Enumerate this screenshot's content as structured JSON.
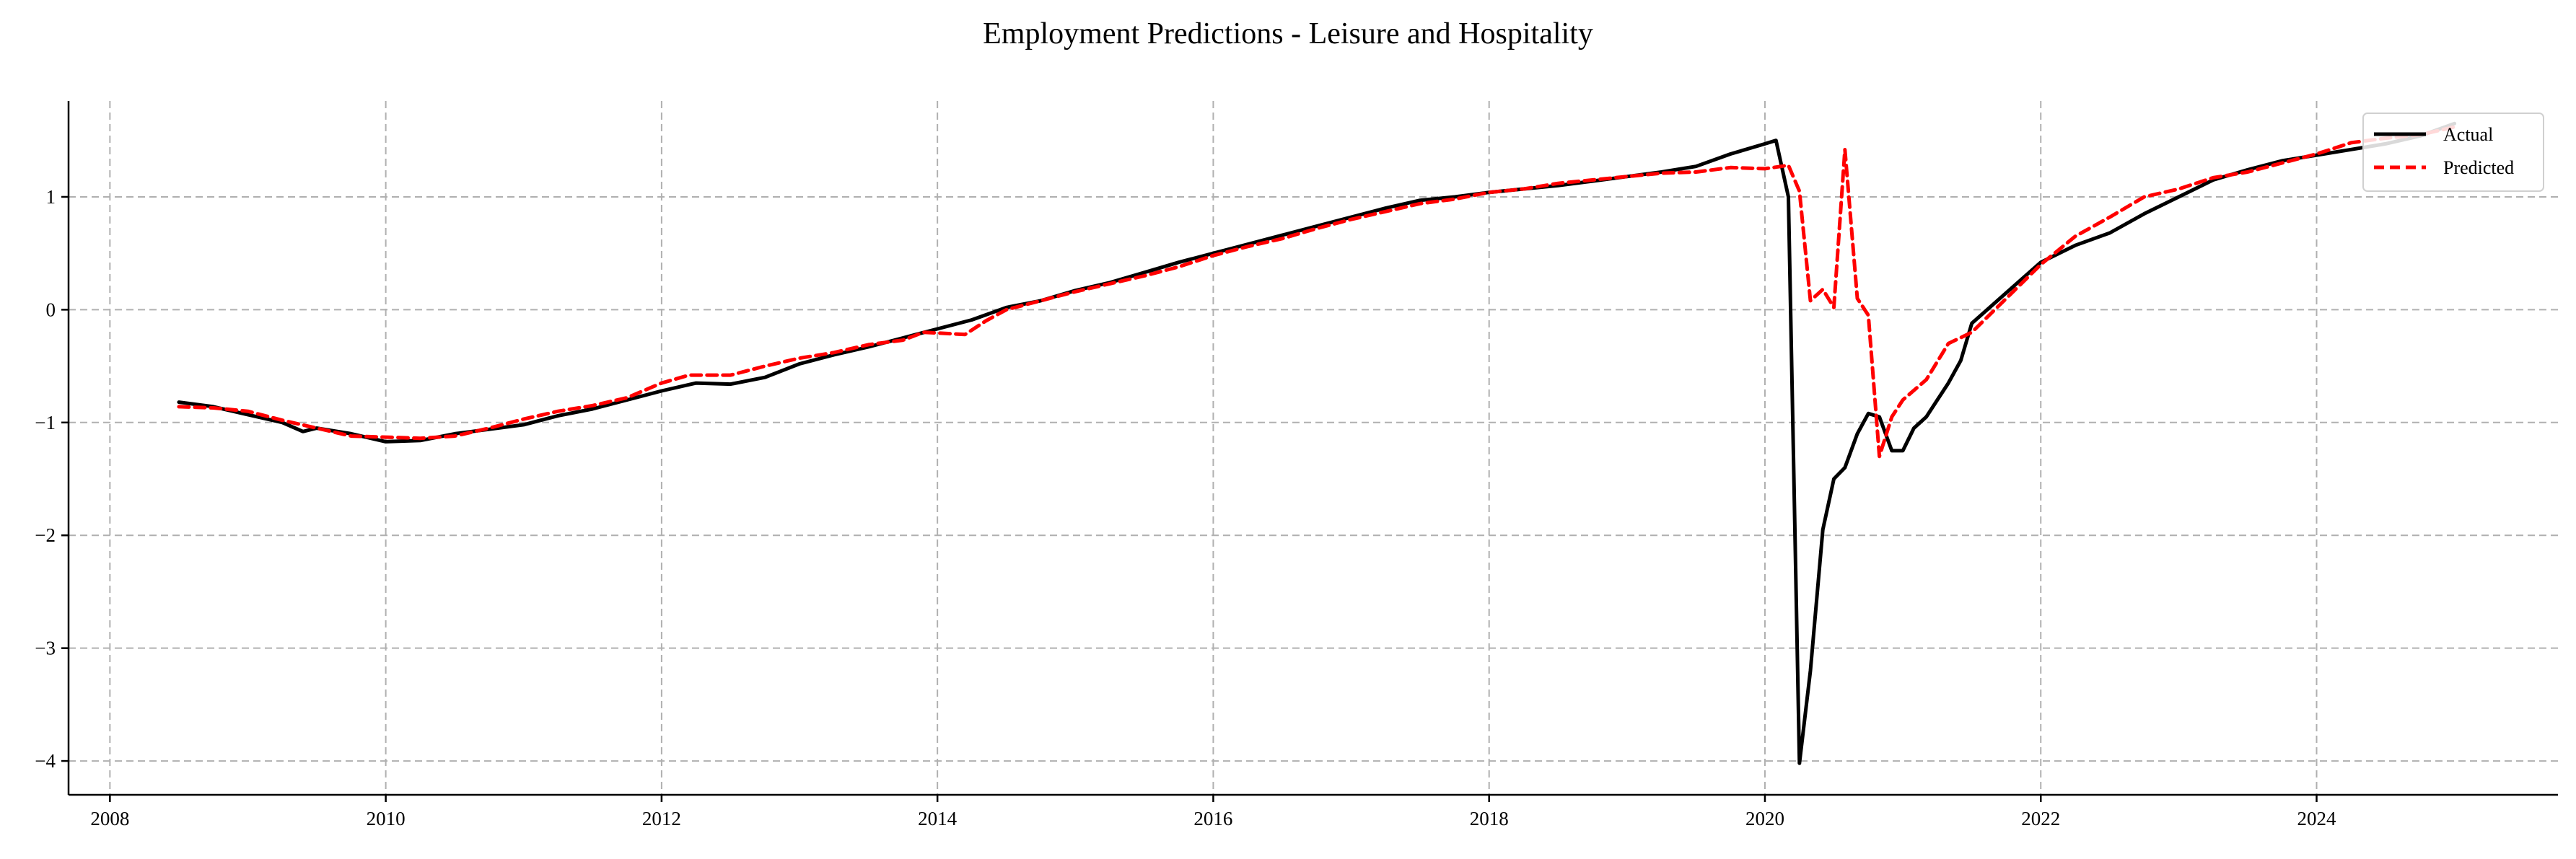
{
  "chart_data": {
    "type": "line",
    "title": "Employment Predictions - Leisure and Hospitality",
    "xlabel": "",
    "ylabel": "",
    "xlim": [
      2007.7,
      2025.75
    ],
    "ylim": [
      -4.3,
      1.85
    ],
    "x_ticks": [
      2008,
      2010,
      2012,
      2014,
      2016,
      2018,
      2020,
      2022,
      2024
    ],
    "y_ticks": [
      1,
      0,
      -1,
      -2,
      -3,
      -4
    ],
    "x_tick_labels": [
      "2008",
      "2010",
      "2012",
      "2014",
      "2016",
      "2018",
      "2020",
      "2022",
      "2024"
    ],
    "y_tick_labels": [
      "1",
      "0",
      "−1",
      "−2",
      "−3",
      "−4"
    ],
    "grid": true,
    "legend_position": "top-right",
    "series": [
      {
        "name": "Actual",
        "color": "#000000",
        "style": "solid",
        "points": [
          [
            2008.5,
            -0.82
          ],
          [
            2008.75,
            -0.86
          ],
          [
            2009.0,
            -0.93
          ],
          [
            2009.25,
            -1.0
          ],
          [
            2009.4,
            -1.08
          ],
          [
            2009.5,
            -1.05
          ],
          [
            2009.75,
            -1.1
          ],
          [
            2010.0,
            -1.17
          ],
          [
            2010.25,
            -1.16
          ],
          [
            2010.5,
            -1.1
          ],
          [
            2010.75,
            -1.06
          ],
          [
            2011.0,
            -1.02
          ],
          [
            2011.25,
            -0.94
          ],
          [
            2011.5,
            -0.88
          ],
          [
            2011.75,
            -0.8
          ],
          [
            2012.0,
            -0.72
          ],
          [
            2012.25,
            -0.65
          ],
          [
            2012.5,
            -0.66
          ],
          [
            2012.75,
            -0.6
          ],
          [
            2013.0,
            -0.48
          ],
          [
            2013.25,
            -0.4
          ],
          [
            2013.5,
            -0.33
          ],
          [
            2013.75,
            -0.25
          ],
          [
            2014.0,
            -0.17
          ],
          [
            2014.25,
            -0.09
          ],
          [
            2014.5,
            0.02
          ],
          [
            2014.75,
            0.08
          ],
          [
            2015.0,
            0.17
          ],
          [
            2015.25,
            0.24
          ],
          [
            2015.5,
            0.33
          ],
          [
            2015.75,
            0.42
          ],
          [
            2016.0,
            0.5
          ],
          [
            2016.25,
            0.58
          ],
          [
            2016.5,
            0.66
          ],
          [
            2016.75,
            0.74
          ],
          [
            2017.0,
            0.82
          ],
          [
            2017.25,
            0.9
          ],
          [
            2017.5,
            0.97
          ],
          [
            2017.75,
            1.0
          ],
          [
            2018.0,
            1.04
          ],
          [
            2018.25,
            1.07
          ],
          [
            2018.5,
            1.1
          ],
          [
            2018.75,
            1.14
          ],
          [
            2019.0,
            1.18
          ],
          [
            2019.25,
            1.22
          ],
          [
            2019.5,
            1.27
          ],
          [
            2019.75,
            1.38
          ],
          [
            2020.0,
            1.47
          ],
          [
            2020.08,
            1.5
          ],
          [
            2020.17,
            1.0
          ],
          [
            2020.25,
            -4.02
          ],
          [
            2020.33,
            -3.2
          ],
          [
            2020.42,
            -1.95
          ],
          [
            2020.5,
            -1.5
          ],
          [
            2020.58,
            -1.4
          ],
          [
            2020.67,
            -1.1
          ],
          [
            2020.75,
            -0.92
          ],
          [
            2020.83,
            -0.95
          ],
          [
            2020.92,
            -1.25
          ],
          [
            2021.0,
            -1.25
          ],
          [
            2021.08,
            -1.05
          ],
          [
            2021.17,
            -0.95
          ],
          [
            2021.25,
            -0.8
          ],
          [
            2021.33,
            -0.65
          ],
          [
            2021.42,
            -0.45
          ],
          [
            2021.5,
            -0.12
          ],
          [
            2021.75,
            0.15
          ],
          [
            2022.0,
            0.42
          ],
          [
            2022.25,
            0.57
          ],
          [
            2022.5,
            0.68
          ],
          [
            2022.75,
            0.85
          ],
          [
            2023.0,
            1.0
          ],
          [
            2023.25,
            1.15
          ],
          [
            2023.5,
            1.24
          ],
          [
            2023.75,
            1.32
          ],
          [
            2024.0,
            1.37
          ],
          [
            2024.25,
            1.42
          ],
          [
            2024.5,
            1.47
          ],
          [
            2024.75,
            1.54
          ],
          [
            2025.0,
            1.65
          ]
        ]
      },
      {
        "name": "Predicted",
        "color": "#ff0000",
        "style": "dashed",
        "points": [
          [
            2008.5,
            -0.86
          ],
          [
            2008.75,
            -0.87
          ],
          [
            2009.0,
            -0.9
          ],
          [
            2009.25,
            -0.98
          ],
          [
            2009.5,
            -1.05
          ],
          [
            2009.75,
            -1.12
          ],
          [
            2010.0,
            -1.13
          ],
          [
            2010.25,
            -1.14
          ],
          [
            2010.5,
            -1.12
          ],
          [
            2010.75,
            -1.05
          ],
          [
            2011.0,
            -0.97
          ],
          [
            2011.25,
            -0.9
          ],
          [
            2011.5,
            -0.85
          ],
          [
            2011.75,
            -0.78
          ],
          [
            2012.0,
            -0.65
          ],
          [
            2012.2,
            -0.58
          ],
          [
            2012.5,
            -0.58
          ],
          [
            2012.75,
            -0.5
          ],
          [
            2013.0,
            -0.43
          ],
          [
            2013.25,
            -0.38
          ],
          [
            2013.5,
            -0.31
          ],
          [
            2013.75,
            -0.27
          ],
          [
            2013.9,
            -0.2
          ],
          [
            2014.2,
            -0.22
          ],
          [
            2014.35,
            -0.1
          ],
          [
            2014.5,
            0.0
          ],
          [
            2014.75,
            0.08
          ],
          [
            2015.0,
            0.16
          ],
          [
            2015.25,
            0.23
          ],
          [
            2015.5,
            0.3
          ],
          [
            2015.75,
            0.38
          ],
          [
            2016.0,
            0.48
          ],
          [
            2016.25,
            0.56
          ],
          [
            2016.5,
            0.63
          ],
          [
            2016.75,
            0.72
          ],
          [
            2017.0,
            0.8
          ],
          [
            2017.25,
            0.87
          ],
          [
            2017.5,
            0.94
          ],
          [
            2017.75,
            0.98
          ],
          [
            2018.0,
            1.04
          ],
          [
            2018.25,
            1.07
          ],
          [
            2018.5,
            1.12
          ],
          [
            2018.75,
            1.15
          ],
          [
            2019.0,
            1.18
          ],
          [
            2019.25,
            1.21
          ],
          [
            2019.5,
            1.22
          ],
          [
            2019.75,
            1.26
          ],
          [
            2020.0,
            1.25
          ],
          [
            2020.17,
            1.28
          ],
          [
            2020.25,
            1.05
          ],
          [
            2020.33,
            0.08
          ],
          [
            2020.42,
            0.18
          ],
          [
            2020.5,
            0.02
          ],
          [
            2020.58,
            1.42
          ],
          [
            2020.67,
            0.1
          ],
          [
            2020.75,
            -0.05
          ],
          [
            2020.83,
            -1.3
          ],
          [
            2020.92,
            -0.95
          ],
          [
            2021.0,
            -0.8
          ],
          [
            2021.17,
            -0.62
          ],
          [
            2021.33,
            -0.3
          ],
          [
            2021.5,
            -0.2
          ],
          [
            2021.75,
            0.1
          ],
          [
            2022.0,
            0.4
          ],
          [
            2022.25,
            0.65
          ],
          [
            2022.5,
            0.82
          ],
          [
            2022.75,
            1.0
          ],
          [
            2023.0,
            1.07
          ],
          [
            2023.25,
            1.17
          ],
          [
            2023.5,
            1.22
          ],
          [
            2023.75,
            1.3
          ],
          [
            2024.0,
            1.38
          ],
          [
            2024.25,
            1.48
          ],
          [
            2024.5,
            1.52
          ],
          [
            2024.75,
            1.55
          ],
          [
            2025.0,
            1.62
          ]
        ]
      }
    ]
  }
}
